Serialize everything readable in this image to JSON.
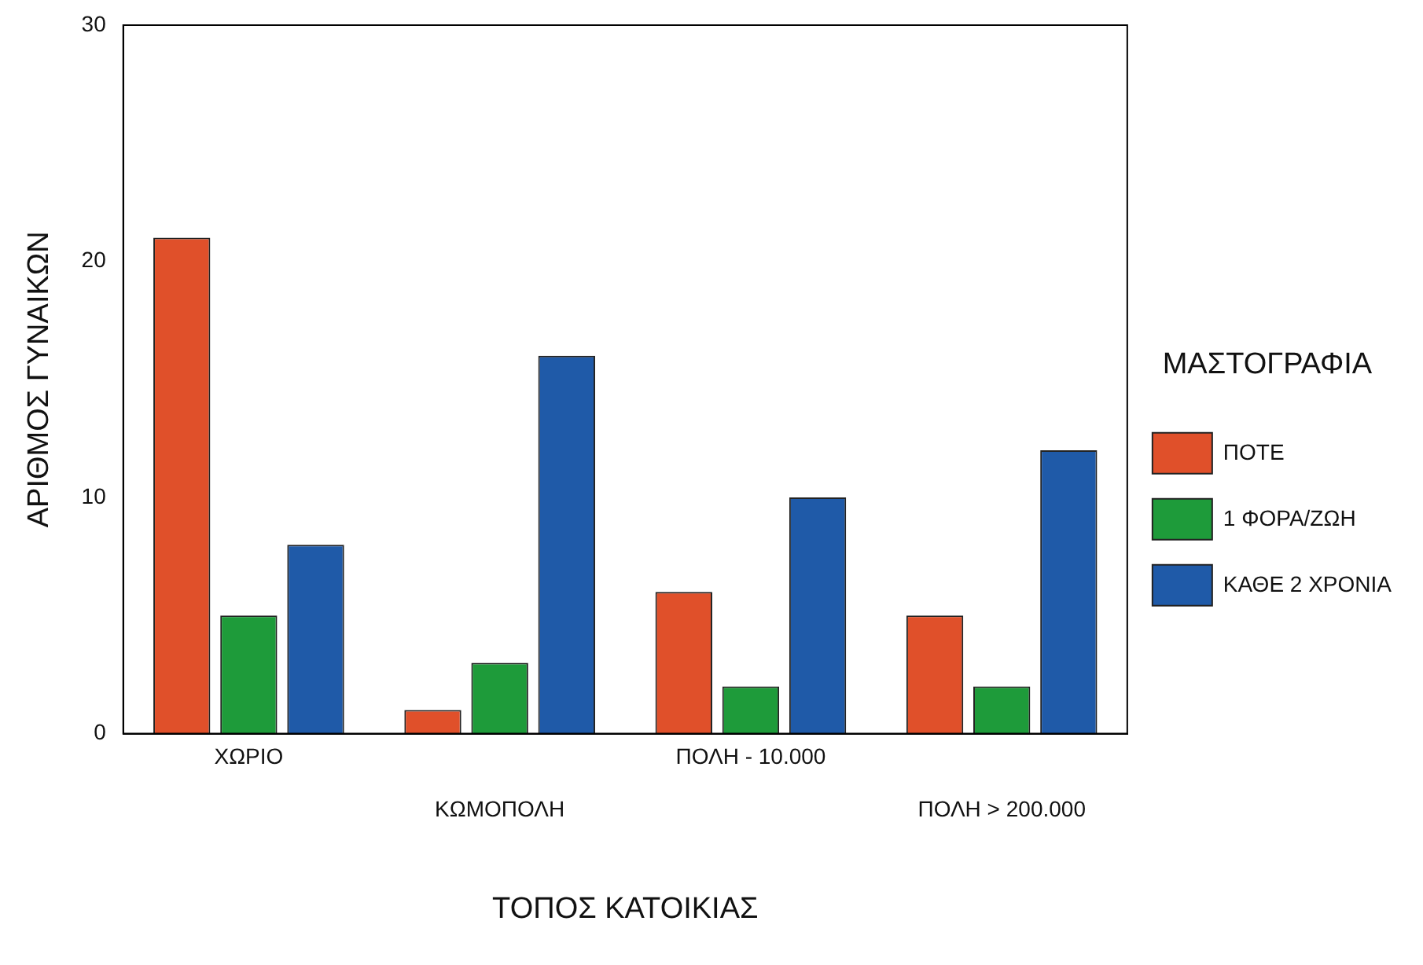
{
  "chart_data": {
    "type": "bar",
    "xlabel": "ΤΟΠΟΣ ΚΑΤΟΙΚΙΑΣ",
    "ylabel": "ΑΡΙΘΜΟΣ ΓΥΝΑΙΚΩΝ",
    "legend_title": "ΜΑΣΤΟΓΡΑΦΙΑ",
    "categories": [
      "ΧΩΡΙΟ",
      "ΚΩΜΟΠΟΛΗ",
      "ΠΟΛΗ - 10.000",
      "ΠΟΛΗ > 200.000"
    ],
    "series": [
      {
        "name": "ΠΟΤΕ",
        "color": "#e0502a",
        "values": [
          21,
          1,
          6,
          5
        ]
      },
      {
        "name": "1 ΦΟΡΑ/ΖΩΗ",
        "color": "#1e9b3a",
        "values": [
          5,
          3,
          2,
          2
        ]
      },
      {
        "name": "ΚΑΘΕ 2 ΧΡΟΝΙΑ",
        "color": "#1f5aa8",
        "values": [
          8,
          16,
          10,
          12
        ]
      }
    ],
    "ylim": [
      0,
      30
    ],
    "yticks": [
      0,
      10,
      20,
      30
    ],
    "grid": false,
    "legend": "right"
  }
}
